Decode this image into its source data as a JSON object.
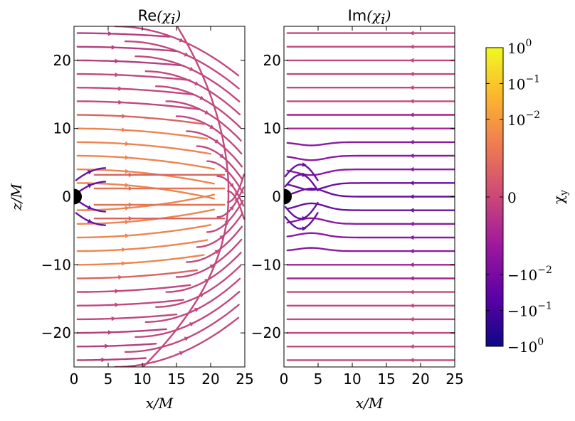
{
  "chart_data": [
    {
      "type": "streamplot",
      "title": "Re(χi)",
      "title_text": "Re",
      "title_math": "(χ",
      "title_sub": "i",
      "title_close": ")",
      "xlabel": "x/M",
      "ylabel": "z/M",
      "xlim": [
        0,
        25
      ],
      "ylim": [
        -25,
        25
      ],
      "xticks": [
        "0",
        "5",
        "10",
        "15",
        "20",
        "25"
      ],
      "yticks": [
        "20",
        "10",
        "0",
        "−10",
        "−20"
      ],
      "ytick_values": [
        20,
        10,
        0,
        -10,
        -20
      ],
      "xtick_values": [
        0,
        5,
        10,
        15,
        20,
        25
      ],
      "separatrix_x_at_z0": 22.5
    },
    {
      "type": "streamplot",
      "title": "Im(χi)",
      "title_text": "Im",
      "title_math": "(χ",
      "title_sub": "i",
      "title_close": ")",
      "xlabel": "x/M",
      "xlim": [
        0,
        25
      ],
      "ylim": [
        -25,
        25
      ],
      "xticks": [
        "0",
        "5",
        "10",
        "15",
        "20",
        "25"
      ],
      "yticks": [
        "20",
        "10",
        "0",
        "−10",
        "−20"
      ],
      "ytick_values": [
        20,
        10,
        0,
        -10,
        -20
      ],
      "xtick_values": [
        0,
        5,
        10,
        15,
        20,
        25
      ]
    }
  ],
  "colorbar": {
    "label": "χy",
    "label_main": "χ",
    "label_sub": "y",
    "ticks": [
      {
        "base": "10",
        "exp": "0"
      },
      {
        "base": "10",
        "exp": "−1"
      },
      {
        "base": "10",
        "exp": "−2"
      },
      {
        "base": "0",
        "exp": ""
      },
      {
        "base": "−10",
        "exp": "−2"
      },
      {
        "base": "−10",
        "exp": "−1"
      },
      {
        "base": "−10",
        "exp": "0"
      }
    ],
    "tick_positions": [
      1,
      0.88,
      0.76,
      0.5,
      0.24,
      0.12,
      0
    ],
    "colormap": [
      "#0d0887",
      "#5c01a6",
      "#9c179e",
      "#cc4778",
      "#ed7953",
      "#fdb42f",
      "#f0f921"
    ]
  }
}
